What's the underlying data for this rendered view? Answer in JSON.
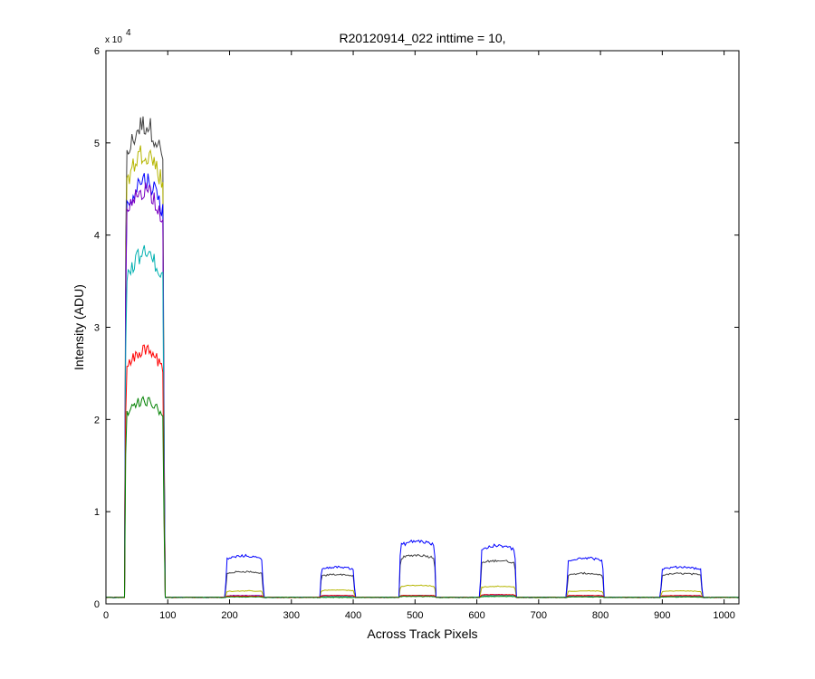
{
  "chart_data": {
    "type": "line",
    "title": "R20120914_022 inttime = 10,",
    "xlabel": "Across Track Pixels",
    "ylabel": "Intensity (ADU)",
    "xlim": [
      0,
      1024
    ],
    "ylim": [
      0,
      60000
    ],
    "xticks": [
      0,
      100,
      200,
      300,
      400,
      500,
      600,
      700,
      800,
      900,
      1000
    ],
    "yticks": [
      0,
      1,
      2,
      3,
      4,
      5,
      6
    ],
    "y_exponent_label": "x 10",
    "y_exponent_power": "4",
    "grid": false,
    "legend": "none",
    "baseline": 700,
    "segments": [
      {
        "start": 30,
        "end": 95
      },
      {
        "start": 193,
        "end": 255
      },
      {
        "start": 346,
        "end": 403
      },
      {
        "start": 474,
        "end": 534
      },
      {
        "start": 605,
        "end": 664
      },
      {
        "start": 745,
        "end": 806
      },
      {
        "start": 897,
        "end": 965
      }
    ],
    "series": [
      {
        "color": "#404040",
        "levels": [
          52000,
          3500,
          3200,
          5300,
          4700,
          3300,
          3300
        ]
      },
      {
        "color": "#b5b500",
        "levels": [
          49000,
          1400,
          1500,
          2000,
          1900,
          1400,
          1400
        ]
      },
      {
        "color": "#0000ff",
        "levels": [
          46000,
          5200,
          4000,
          6800,
          6300,
          5000,
          4000
        ]
      },
      {
        "color": "#7a00c0",
        "levels": [
          45000,
          900,
          900,
          900,
          1000,
          900,
          900
        ]
      },
      {
        "color": "#00b0b0",
        "levels": [
          38000,
          800,
          800,
          900,
          900,
          800,
          800
        ]
      },
      {
        "color": "#ff0000",
        "levels": [
          27500,
          850,
          900,
          900,
          1000,
          900,
          900
        ]
      },
      {
        "color": "#008000",
        "levels": [
          22000,
          750,
          700,
          800,
          800,
          750,
          750
        ]
      }
    ]
  }
}
